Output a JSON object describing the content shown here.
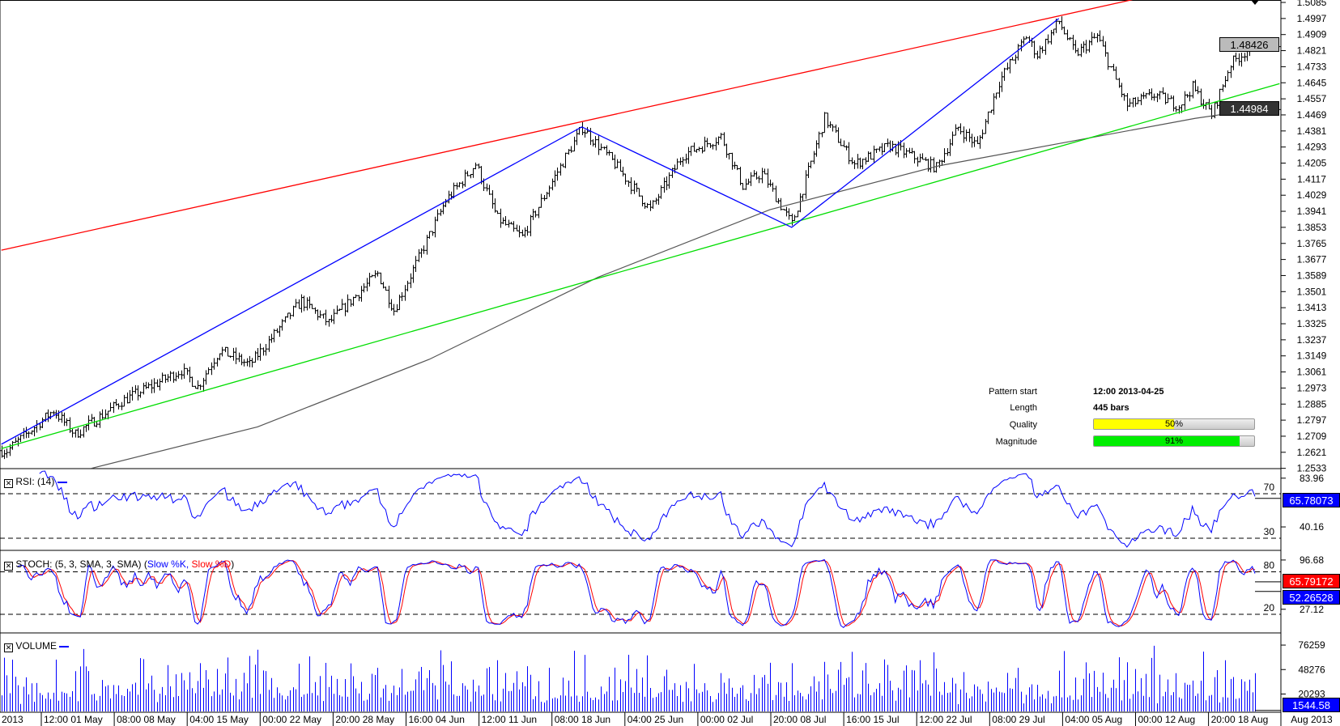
{
  "colors": {
    "resistance": "#ff0000",
    "support": "#00dd00",
    "pattern": "#0000ff",
    "ma": "#555555",
    "bars": "#000000",
    "rsi": "#0000ff",
    "stoch_k": "#0000ff",
    "stoch_d": "#ff0000",
    "volume": "#0000ff",
    "quality": "#ffff00",
    "magnitude": "#00ee00"
  },
  "chart_data": {
    "type": "ohlc",
    "price_axis": {
      "ticks": [
        "1.5085",
        "1.4997",
        "1.4909",
        "1.4821",
        "1.4733",
        "1.4645",
        "1.4557",
        "1.4469",
        "1.4381",
        "1.4293",
        "1.4205",
        "1.4117",
        "1.4029",
        "1.3941",
        "1.3853",
        "1.3765",
        "1.3677",
        "1.3589",
        "1.3501",
        "1.3413",
        "1.3325",
        "1.3237",
        "1.3149",
        "1.3061",
        "1.2973",
        "1.2885",
        "1.2797",
        "1.2709",
        "1.2621",
        "1.2533"
      ],
      "ylim": [
        1.2533,
        1.5085
      ]
    },
    "bar_count": 470,
    "price_pivots": [
      [
        0,
        1.263
      ],
      [
        2,
        1.263
      ],
      [
        19,
        1.285
      ],
      [
        27,
        1.272
      ],
      [
        44,
        1.29
      ],
      [
        66,
        1.307
      ],
      [
        72,
        1.298
      ],
      [
        80,
        1.318
      ],
      [
        91,
        1.31
      ],
      [
        110,
        1.345
      ],
      [
        120,
        1.333
      ],
      [
        138,
        1.36
      ],
      [
        144,
        1.34
      ],
      [
        163,
        1.4
      ],
      [
        174,
        1.42
      ],
      [
        182,
        1.39
      ],
      [
        191,
        1.38
      ],
      [
        200,
        1.405
      ],
      [
        213,
        1.44
      ],
      [
        225,
        1.42
      ],
      [
        238,
        1.395
      ],
      [
        250,
        1.425
      ],
      [
        264,
        1.435
      ],
      [
        272,
        1.408
      ],
      [
        279,
        1.415
      ],
      [
        290,
        1.387
      ],
      [
        302,
        1.445
      ],
      [
        313,
        1.42
      ],
      [
        326,
        1.43
      ],
      [
        343,
        1.418
      ],
      [
        351,
        1.44
      ],
      [
        358,
        1.43
      ],
      [
        366,
        1.465
      ],
      [
        376,
        1.49
      ],
      [
        380,
        1.48
      ],
      [
        388,
        1.498
      ],
      [
        394,
        1.48
      ],
      [
        402,
        1.49
      ],
      [
        413,
        1.452
      ],
      [
        423,
        1.458
      ],
      [
        432,
        1.452
      ],
      [
        437,
        1.462
      ],
      [
        444,
        1.447
      ],
      [
        451,
        1.475
      ],
      [
        460,
        1.486
      ]
    ],
    "moving_average": [
      [
        33,
        1.2533
      ],
      [
        94,
        1.276
      ],
      [
        157,
        1.313
      ],
      [
        219,
        1.358
      ],
      [
        282,
        1.395
      ],
      [
        344,
        1.419
      ],
      [
        391,
        1.432
      ],
      [
        438,
        1.445
      ],
      [
        460,
        1.4498
      ]
    ],
    "resistance_line": [
      [
        0,
        1.3728
      ],
      [
        415,
        1.51
      ]
    ],
    "support_line": [
      [
        0,
        1.2641
      ],
      [
        469,
        1.464
      ]
    ],
    "pattern_zigzag": [
      [
        0,
        1.2665
      ],
      [
        213,
        1.4403
      ],
      [
        290,
        1.3853
      ],
      [
        388,
        1.4997
      ]
    ],
    "last_price": "1.48426",
    "ma_value": "1.44984",
    "x_labels": [
      "2013",
      "12:00 01 May",
      "08:00 08 May",
      "04:00 15 May",
      "00:00 22 May",
      "20:00 28 May",
      "16:00 04 Jun",
      "12:00 11 Jun",
      "08:00 18 Jun",
      "04:00 25 Jun",
      "00:00 02 Jul",
      "20:00 08 Jul",
      "16:00 15 Jul",
      "12:00 22 Jul",
      "08:00 29 Jul",
      "04:00 05 Aug",
      "00:00 12 Aug",
      "20:00 18 Aug"
    ],
    "x_axis_right": "Aug 2013"
  },
  "info": {
    "pattern_start_label": "Pattern start",
    "pattern_start": "12:00 2013-04-25",
    "length_label": "Length",
    "length": "445 bars",
    "quality_label": "Quality",
    "quality": "50%",
    "quality_value": 50,
    "magnitude_label": "Magnitude",
    "magnitude": "91%",
    "magnitude_value": 91
  },
  "rsi": {
    "title": "RSI: (14)",
    "level_high": "70",
    "level_low": "30",
    "axis": [
      "83.96",
      "40.16"
    ],
    "value": "65.78073"
  },
  "stoch": {
    "title": "STOCH: (5, 3, SMA, 3, SMA) (",
    "k_label": "Slow %K,",
    "d_label": "Slow %D",
    ")": ")",
    "close": ")",
    "level_high": "80",
    "level_low": "20",
    "axis": [
      "96.68",
      "27.12"
    ],
    "d_value": "65.79172",
    "k_value": "52.26528"
  },
  "volume": {
    "title": "VOLUME",
    "axis": [
      "76259",
      "48276",
      "20293"
    ],
    "value": "1544.58"
  }
}
